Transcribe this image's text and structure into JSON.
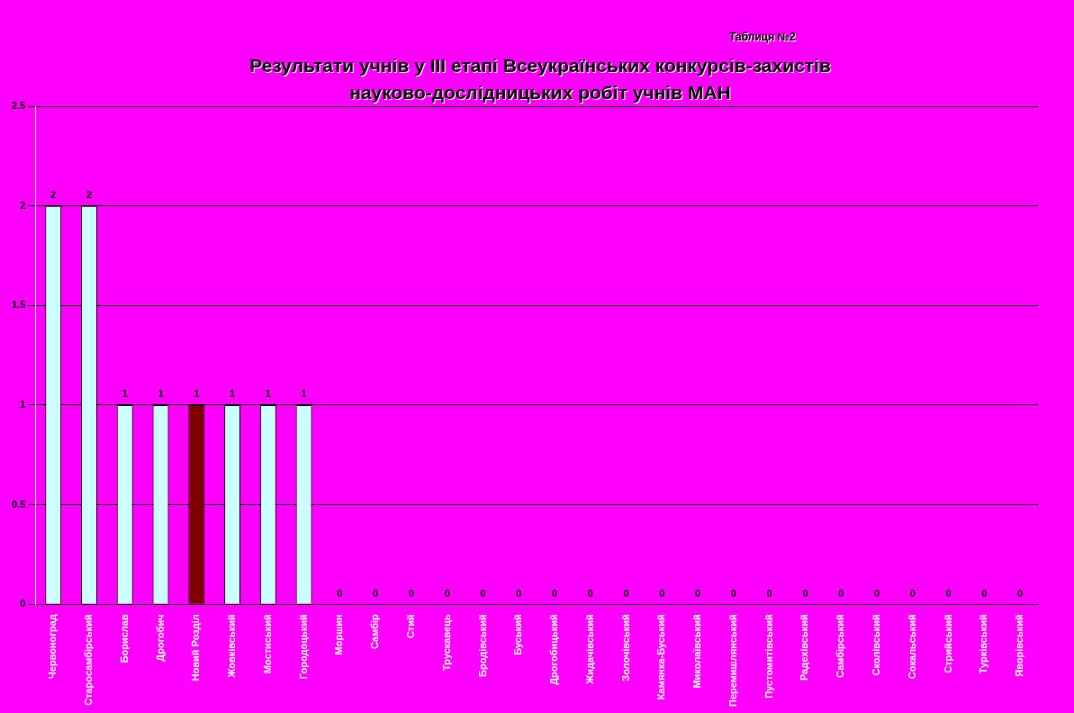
{
  "chart_data": {
    "type": "bar",
    "title": "Результати учнів у ІІІ етапі Всеукраїнських конкурсів-захистів науково-дослідницьких робіт учнів МАН",
    "annotations": [
      "Таблиця №2"
    ],
    "categories": [
      "Червоноград",
      "Старосамбірський",
      "Борислав",
      "Дрогобич",
      "Новий Розділ",
      "Жовківський",
      "Мостиський",
      "Городоцький",
      "Моршин",
      "Самбір",
      "Стий",
      "Трускавець",
      "Бродівський",
      "Буський",
      "Дрогобицький",
      "Жидачівський",
      "Золочівський",
      "Камянка-Буський",
      "Миколаївський",
      "Перемишлянський",
      "Пустомитівський",
      "Радехівський",
      "Самбірський",
      "Сколівський",
      "Сокальський",
      "Стрийський",
      "Турківський",
      "Яворівський"
    ],
    "values": [
      2,
      2,
      1,
      1,
      1,
      1,
      1,
      1,
      0,
      0,
      0,
      0,
      0,
      0,
      0,
      0,
      0,
      0,
      0,
      0,
      0,
      0,
      0,
      0,
      0,
      0,
      0,
      0
    ],
    "colors": [
      "#ccffff",
      "#ccffff",
      "#ccffff",
      "#ccffff",
      "#800000",
      "#ccffff",
      "#ccffff",
      "#ccffff",
      "#ccffff",
      "#ccffff",
      "#ccffff",
      "#ccffff",
      "#ccffff",
      "#ccffff",
      "#ccffff",
      "#ccffff",
      "#ccffff",
      "#ccffff",
      "#ccffff",
      "#ccffff",
      "#ccffff",
      "#ccffff",
      "#ccffff",
      "#ccffff",
      "#ccffff",
      "#ccffff",
      "#ccffff",
      "#ccffff"
    ],
    "ylim": [
      0,
      2.5
    ],
    "yticks": [
      0,
      0.5,
      1,
      1.5,
      2,
      2.5
    ],
    "grid": "y",
    "data_labels": true,
    "legend": false
  }
}
